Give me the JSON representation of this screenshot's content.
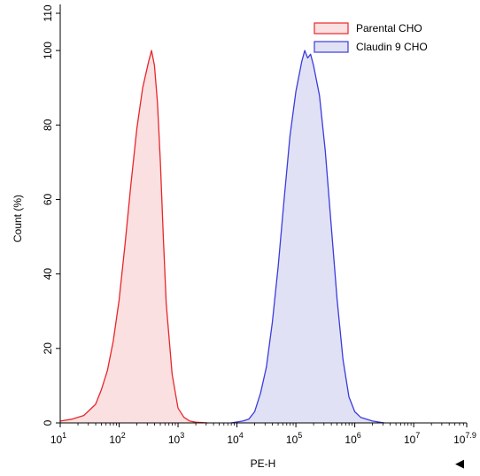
{
  "chart_data": {
    "type": "area",
    "xlabel": "PE-H",
    "ylabel": "Count (%)",
    "xscale": "log10",
    "xlim": [
      1,
      7.9
    ],
    "ylim": [
      0,
      110
    ],
    "x_ticks": [
      {
        "base": "10",
        "exp": "1",
        "value": 1
      },
      {
        "base": "10",
        "exp": "2",
        "value": 2
      },
      {
        "base": "10",
        "exp": "3",
        "value": 3
      },
      {
        "base": "10",
        "exp": "4",
        "value": 4
      },
      {
        "base": "10",
        "exp": "5",
        "value": 5
      },
      {
        "base": "10",
        "exp": "6",
        "value": 6
      },
      {
        "base": "10",
        "exp": "7",
        "value": 7
      },
      {
        "base": "10",
        "exp": "7.9",
        "value": 7.9
      }
    ],
    "y_ticks": [
      {
        "label": "0",
        "value": 0
      },
      {
        "label": "20",
        "value": 20
      },
      {
        "label": "40",
        "value": 40
      },
      {
        "label": "60",
        "value": 60
      },
      {
        "label": "80",
        "value": 80
      },
      {
        "label": "100",
        "value": 100
      },
      {
        "label": "110",
        "value": 110
      }
    ],
    "legend_position": "top-right",
    "series": [
      {
        "name": "Parental CHO",
        "color": "#e8262b",
        "fill": "#fbe0e1",
        "x_log10": [
          1.0,
          1.2,
          1.4,
          1.6,
          1.7,
          1.8,
          1.9,
          2.0,
          2.1,
          2.2,
          2.3,
          2.4,
          2.5,
          2.55,
          2.6,
          2.65,
          2.7,
          2.75,
          2.8,
          2.9,
          3.0,
          3.1,
          3.2,
          3.3,
          3.5
        ],
        "y": [
          0.5,
          1,
          2,
          5,
          9,
          14,
          22,
          33,
          48,
          64,
          79,
          90,
          97,
          100,
          96,
          86,
          70,
          50,
          32,
          13,
          4,
          1.5,
          0.5,
          0.2,
          0
        ]
      },
      {
        "name": "Claudin 9 CHO",
        "color": "#3b3bdc",
        "fill": "#e1e1f6",
        "x_log10": [
          3.9,
          4.1,
          4.2,
          4.3,
          4.4,
          4.5,
          4.6,
          4.7,
          4.8,
          4.9,
          5.0,
          5.1,
          5.15,
          5.2,
          5.25,
          5.3,
          5.4,
          5.5,
          5.6,
          5.7,
          5.8,
          5.9,
          6.0,
          6.1,
          6.3,
          6.5
        ],
        "y": [
          0,
          0.5,
          1,
          3,
          8,
          15,
          27,
          42,
          60,
          77,
          89,
          97,
          100,
          98,
          99,
          96,
          88,
          73,
          53,
          33,
          17,
          7,
          3,
          1.5,
          0.5,
          0
        ]
      }
    ],
    "corner_marker": "◀"
  }
}
